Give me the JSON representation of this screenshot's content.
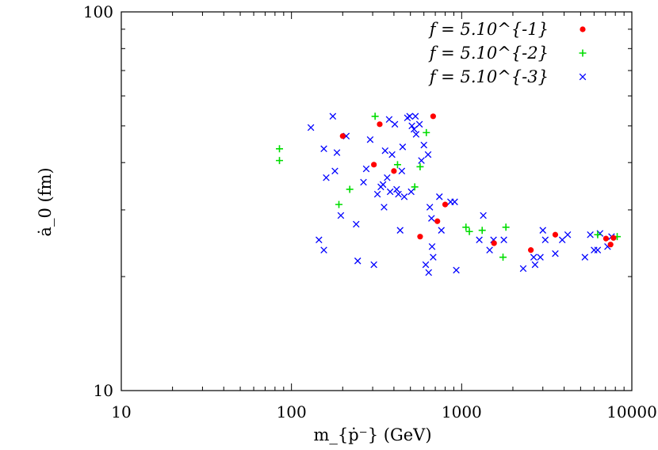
{
  "chart_data": {
    "type": "scatter",
    "title": "",
    "xlabel": "m_{ṗ⁻} (GeV)",
    "ylabel": "ȧ_0 (fm)",
    "xscale": "log",
    "yscale": "log",
    "xlim": [
      10,
      10000
    ],
    "ylim": [
      10,
      100
    ],
    "xticks": [
      {
        "value": 10,
        "label": "10"
      },
      {
        "value": 100,
        "label": "100"
      },
      {
        "value": 1000,
        "label": "1000"
      },
      {
        "value": 10000,
        "label": "10000"
      }
    ],
    "yticks": [
      {
        "value": 10,
        "label": "10"
      },
      {
        "value": 100,
        "label": "100"
      }
    ],
    "legend_position": "top-right",
    "series": [
      {
        "name": "f = 5.10^{-1}",
        "marker": "circle",
        "color": "#ff0000",
        "points": [
          [
            200,
            47
          ],
          [
            305,
            39.5
          ],
          [
            330,
            50.5
          ],
          [
            400,
            38
          ],
          [
            570,
            25.5
          ],
          [
            680,
            53
          ],
          [
            720,
            28
          ],
          [
            800,
            31
          ],
          [
            1550,
            24.5
          ],
          [
            2550,
            23.5
          ],
          [
            3550,
            25.8
          ],
          [
            7050,
            25.2
          ],
          [
            7500,
            24.3
          ],
          [
            7800,
            25.3
          ]
        ]
      },
      {
        "name": "f = 5.10^{-2}",
        "marker": "plus",
        "color": "#00dd00",
        "points": [
          [
            85,
            43.5
          ],
          [
            85,
            40.5
          ],
          [
            190,
            31
          ],
          [
            220,
            34
          ],
          [
            310,
            53
          ],
          [
            420,
            39.5
          ],
          [
            530,
            34.5
          ],
          [
            570,
            39
          ],
          [
            620,
            48
          ],
          [
            1060,
            27
          ],
          [
            1110,
            26.3
          ],
          [
            1320,
            26.5
          ],
          [
            1750,
            22.5
          ],
          [
            1820,
            27
          ],
          [
            6300,
            25.8
          ],
          [
            8200,
            25.5
          ]
        ]
      },
      {
        "name": "f = 5.10^{-3}",
        "marker": "cross",
        "color": "#0000ff",
        "points": [
          [
            130,
            49.5
          ],
          [
            145,
            25
          ],
          [
            155,
            23.5
          ],
          [
            155,
            43.5
          ],
          [
            160,
            36.5
          ],
          [
            175,
            53
          ],
          [
            180,
            38
          ],
          [
            185,
            42.5
          ],
          [
            195,
            29
          ],
          [
            210,
            47
          ],
          [
            240,
            27.5
          ],
          [
            245,
            22
          ],
          [
            265,
            35.5
          ],
          [
            275,
            38.5
          ],
          [
            290,
            46
          ],
          [
            305,
            21.5
          ],
          [
            320,
            33
          ],
          [
            335,
            34.5
          ],
          [
            345,
            35
          ],
          [
            350,
            30.5
          ],
          [
            355,
            43
          ],
          [
            365,
            36.5
          ],
          [
            375,
            52
          ],
          [
            380,
            33.5
          ],
          [
            390,
            42
          ],
          [
            405,
            50.5
          ],
          [
            415,
            34
          ],
          [
            425,
            33
          ],
          [
            435,
            26.5
          ],
          [
            445,
            38
          ],
          [
            450,
            44
          ],
          [
            460,
            32.5
          ],
          [
            480,
            52.5
          ],
          [
            495,
            53
          ],
          [
            505,
            33.5
          ],
          [
            510,
            50
          ],
          [
            525,
            49
          ],
          [
            535,
            53
          ],
          [
            540,
            47.5
          ],
          [
            565,
            50.5
          ],
          [
            580,
            40.5
          ],
          [
            600,
            44.5
          ],
          [
            615,
            21.5
          ],
          [
            635,
            42
          ],
          [
            640,
            20.5
          ],
          [
            650,
            30.5
          ],
          [
            665,
            28.5
          ],
          [
            670,
            24
          ],
          [
            680,
            22.5
          ],
          [
            740,
            32.5
          ],
          [
            760,
            26.5
          ],
          [
            860,
            31.5
          ],
          [
            910,
            31.5
          ],
          [
            930,
            20.8
          ],
          [
            1270,
            25
          ],
          [
            1340,
            29
          ],
          [
            1460,
            23.5
          ],
          [
            1540,
            25
          ],
          [
            1770,
            25
          ],
          [
            2300,
            21
          ],
          [
            2650,
            22.5
          ],
          [
            2700,
            21.5
          ],
          [
            2900,
            22.5
          ],
          [
            3000,
            26.5
          ],
          [
            3100,
            25
          ],
          [
            3550,
            23
          ],
          [
            3900,
            25
          ],
          [
            4200,
            25.8
          ],
          [
            5300,
            22.5
          ],
          [
            5700,
            25.8
          ],
          [
            6000,
            23.5
          ],
          [
            6300,
            23.5
          ],
          [
            6500,
            26
          ],
          [
            7200,
            24
          ],
          [
            7600,
            25.5
          ]
        ]
      }
    ]
  }
}
